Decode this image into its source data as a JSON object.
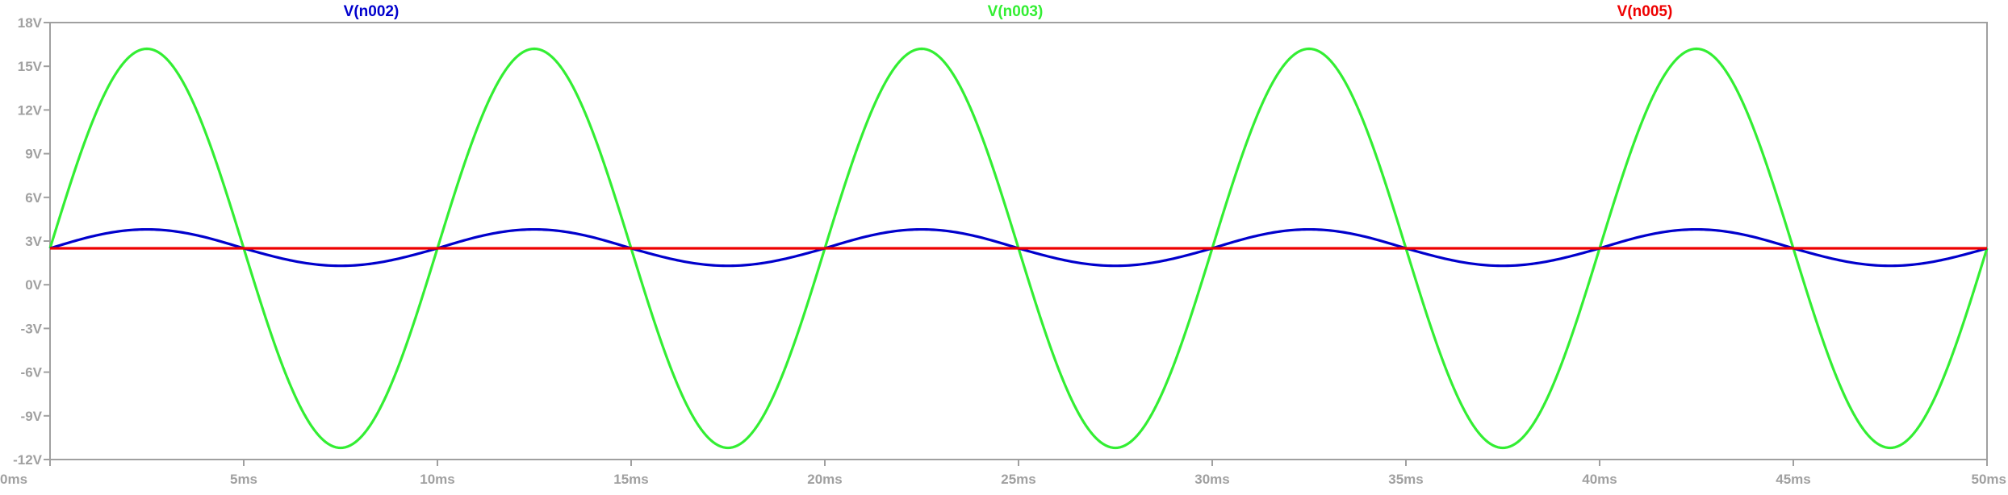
{
  "chart_data": {
    "type": "line",
    "title": "",
    "xlabel": "",
    "ylabel": "",
    "xlim": [
      0,
      50
    ],
    "ylim": [
      -12,
      18
    ],
    "grid": false,
    "legend_placement": "top",
    "x_ticks": [
      0,
      5,
      10,
      15,
      20,
      25,
      30,
      35,
      40,
      45,
      50
    ],
    "x_tick_labels": [
      "0ms",
      "5ms",
      "10ms",
      "15ms",
      "20ms",
      "25ms",
      "30ms",
      "35ms",
      "40ms",
      "45ms",
      "50ms"
    ],
    "y_ticks": [
      18,
      15,
      12,
      9,
      6,
      3,
      0,
      -3,
      -6,
      -9,
      -12
    ],
    "y_tick_labels": [
      "18V",
      "15V",
      "12V",
      "9V",
      "6V",
      "3V",
      "0V",
      "-3V",
      "-6V",
      "-9V",
      "-12V"
    ],
    "series": [
      {
        "name": "V(n002)",
        "color": "#0000cc",
        "x": [
          0,
          2.5,
          5,
          7.5,
          10,
          12.5,
          15,
          17.5,
          20,
          22.5,
          25,
          27.5,
          30,
          32.5,
          35,
          37.5,
          40,
          42.5,
          45,
          47.5,
          50
        ],
        "y": [
          2.5,
          3.8,
          2.5,
          1.3,
          2.5,
          3.8,
          2.5,
          1.3,
          2.5,
          3.8,
          2.5,
          1.3,
          2.5,
          3.8,
          2.5,
          1.3,
          2.5,
          3.8,
          2.5,
          1.3,
          2.5
        ]
      },
      {
        "name": "V(n003)",
        "color": "#33ee33",
        "x": [
          0,
          2.5,
          5,
          7.5,
          10,
          12.5,
          15,
          17.5,
          20,
          22.5,
          25,
          27.5,
          30,
          32.5,
          35,
          37.5,
          40,
          42.5,
          45,
          47.5,
          50
        ],
        "y": [
          2.5,
          16.2,
          2.5,
          -11.2,
          2.5,
          16.2,
          2.5,
          -11.2,
          2.5,
          16.2,
          2.5,
          -11.2,
          2.5,
          16.2,
          2.5,
          -11.2,
          2.5,
          16.2,
          2.5,
          -11.2,
          2.5
        ]
      },
      {
        "name": "V(n005)",
        "color": "#ee0000",
        "x": [
          0,
          50
        ],
        "y": [
          2.5,
          2.5
        ]
      }
    ]
  }
}
